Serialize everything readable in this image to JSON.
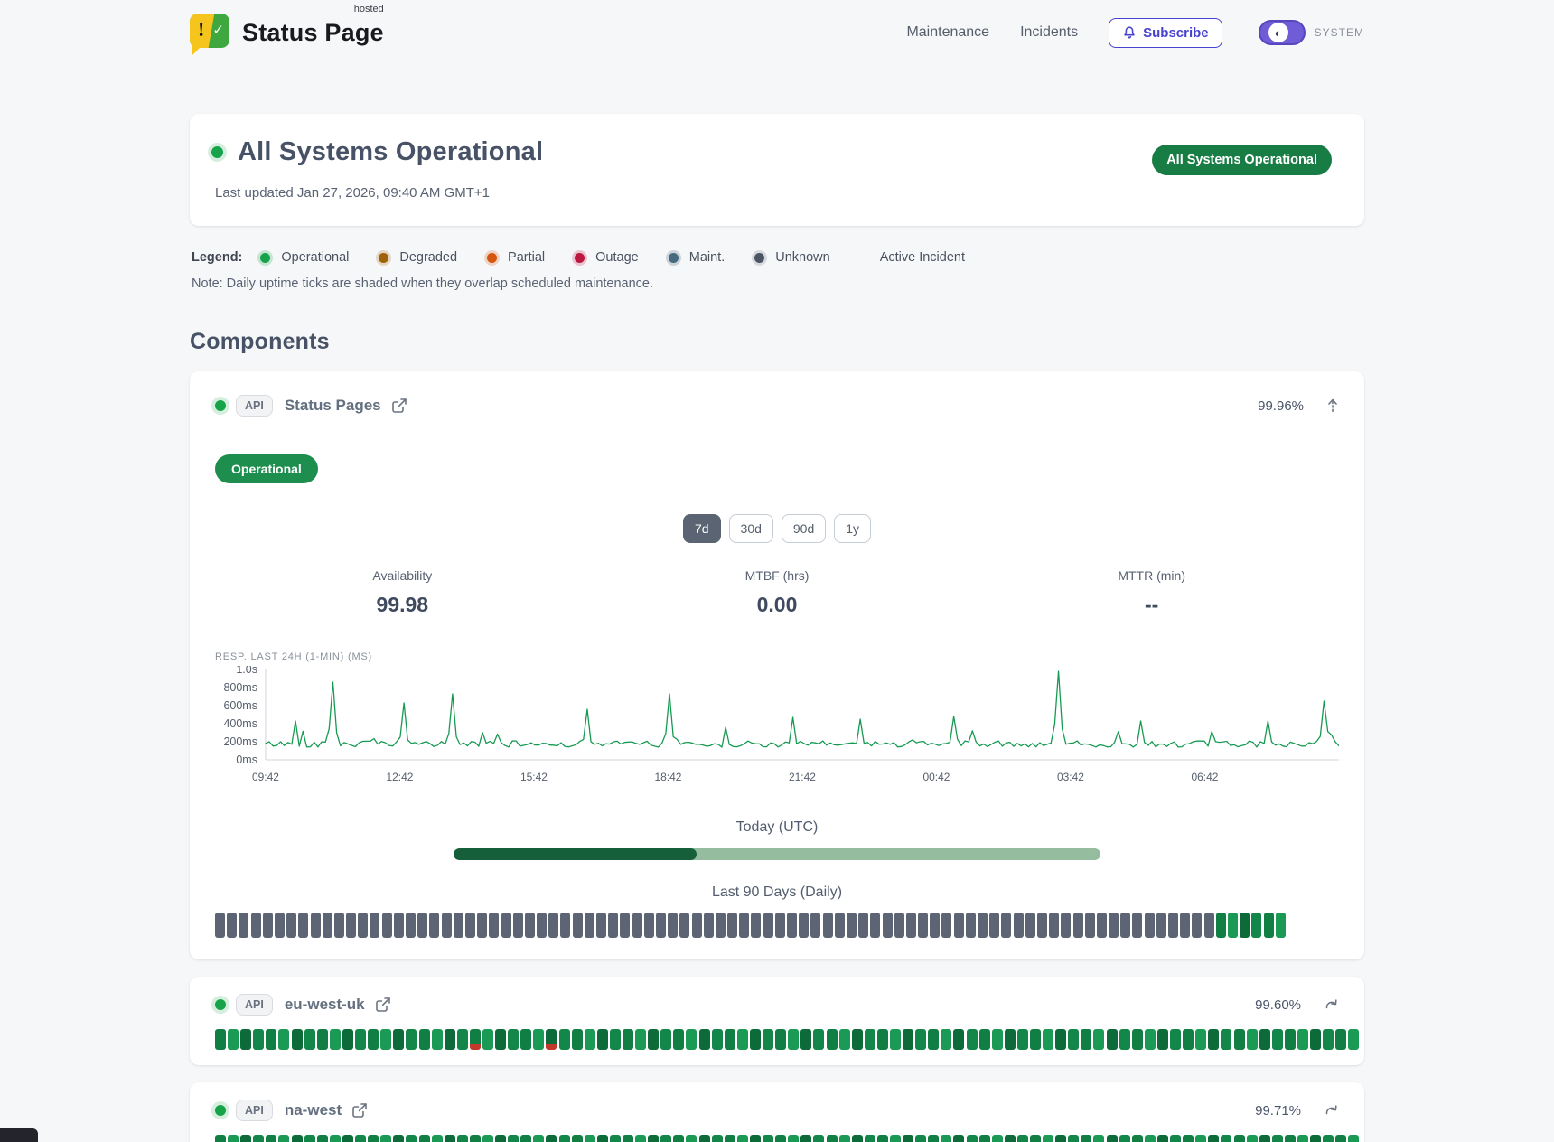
{
  "brand": {
    "name": "Status Page",
    "superscript": "hosted",
    "exclaim": "!",
    "check": "✓"
  },
  "nav": {
    "items": [
      {
        "label": "Maintenance"
      },
      {
        "label": "Incidents"
      }
    ],
    "subscribe_label": "Subscribe",
    "theme_label": "SYSTEM"
  },
  "hero": {
    "title": "All Systems Operational",
    "updated": "Last updated Jan 27, 2026, 09:40 AM GMT+1",
    "badge": "All Systems Operational"
  },
  "legend": {
    "label": "Legend:",
    "items": [
      {
        "label": "Operational",
        "color": "#16a34a",
        "ring": "rgba(22,163,74,.22)"
      },
      {
        "label": "Degraded",
        "color": "#a16207",
        "ring": "rgba(161,98,7,.22)"
      },
      {
        "label": "Partial",
        "color": "#d4560f",
        "ring": "rgba(212,86,15,.22)"
      },
      {
        "label": "Outage",
        "color": "#bc1840",
        "ring": "rgba(188,24,64,.22)"
      },
      {
        "label": "Maint.",
        "color": "#46697e",
        "ring": "rgba(70,105,126,.25)"
      },
      {
        "label": "Unknown",
        "color": "#4b5563",
        "ring": "rgba(75,85,99,.18)"
      }
    ],
    "active_incident_label": "Active Incident",
    "note": "Note: Daily uptime ticks are shaded when they overlap scheduled maintenance."
  },
  "components_title": "Components",
  "expanded": {
    "tag": "API",
    "name": "Status Pages",
    "availability_badge": "99.96%",
    "status_pill": "Operational",
    "ranges": [
      "7d",
      "30d",
      "90d",
      "1y"
    ],
    "selected_range": "7d",
    "metrics": [
      {
        "label": "Availability",
        "value": "99.98"
      },
      {
        "label": "MTBF (hrs)",
        "value": "0.00"
      },
      {
        "label": "MTTR (min)",
        "value": "--"
      }
    ],
    "today_label": "Today (UTC)",
    "today_progress": 0.375,
    "history_label": "Last 90 Days (Daily)",
    "history_ticks": {
      "count": 90,
      "default": "unknown",
      "overrides": {
        "84": "op",
        "85": "op",
        "86": "op",
        "87": "op",
        "88": "op",
        "89": "op"
      }
    }
  },
  "chart_data": {
    "type": "line",
    "title": "RESP. LAST 24H (1-MIN) (MS)",
    "x_ticks": [
      "09:42",
      "12:42",
      "15:42",
      "18:42",
      "21:42",
      "00:42",
      "03:42",
      "06:42"
    ],
    "y_ticks": [
      {
        "label": "1.0s",
        "ms": 1000
      },
      {
        "label": "800ms",
        "ms": 800
      },
      {
        "label": "600ms",
        "ms": 600
      },
      {
        "label": "400ms",
        "ms": 400
      },
      {
        "label": "200ms",
        "ms": 200
      },
      {
        "label": "0ms",
        "ms": 0
      }
    ],
    "ylim_ms": [
      0,
      1000
    ],
    "baseline_ms": [
      140,
      210
    ],
    "series_points": 288,
    "spikes": [
      {
        "pos": 0.028,
        "ms": 430
      },
      {
        "pos": 0.062,
        "ms": 860
      },
      {
        "pos": 0.13,
        "ms": 630
      },
      {
        "pos": 0.175,
        "ms": 730
      },
      {
        "pos": 0.3,
        "ms": 560
      },
      {
        "pos": 0.375,
        "ms": 730
      },
      {
        "pos": 0.49,
        "ms": 470
      },
      {
        "pos": 0.555,
        "ms": 450
      },
      {
        "pos": 0.64,
        "ms": 480
      },
      {
        "pos": 0.74,
        "ms": 980
      },
      {
        "pos": 0.815,
        "ms": 430
      },
      {
        "pos": 0.935,
        "ms": 430
      },
      {
        "pos": 0.985,
        "ms": 650
      }
    ]
  },
  "components": [
    {
      "tag": "API",
      "name": "eu-west-uk",
      "availability": "99.60%",
      "ticks": {
        "count": 90,
        "default": "op",
        "overrides": {
          "20": "op-partial",
          "26": "op-partial"
        }
      }
    },
    {
      "tag": "API",
      "name": "na-west",
      "availability": "99.71%",
      "ticks": {
        "count": 90,
        "default": "op",
        "overrides": {
          "31": "op-partial"
        }
      }
    }
  ],
  "colors": {
    "tick_gray": "#5d6574",
    "tick_greens": [
      "#13864a",
      "#0c6b39",
      "#1b9a55",
      "#117e44"
    ],
    "tick_partial_red": "#c0392b",
    "chart_line": "#169a52",
    "axis_text": "#555e6b",
    "axis_line": "#d2d6db",
    "progress_dark": "#15603a",
    "progress_light": "#96bc9f",
    "badge_green": "#187c45",
    "accent_indigo": "#4843cf"
  }
}
